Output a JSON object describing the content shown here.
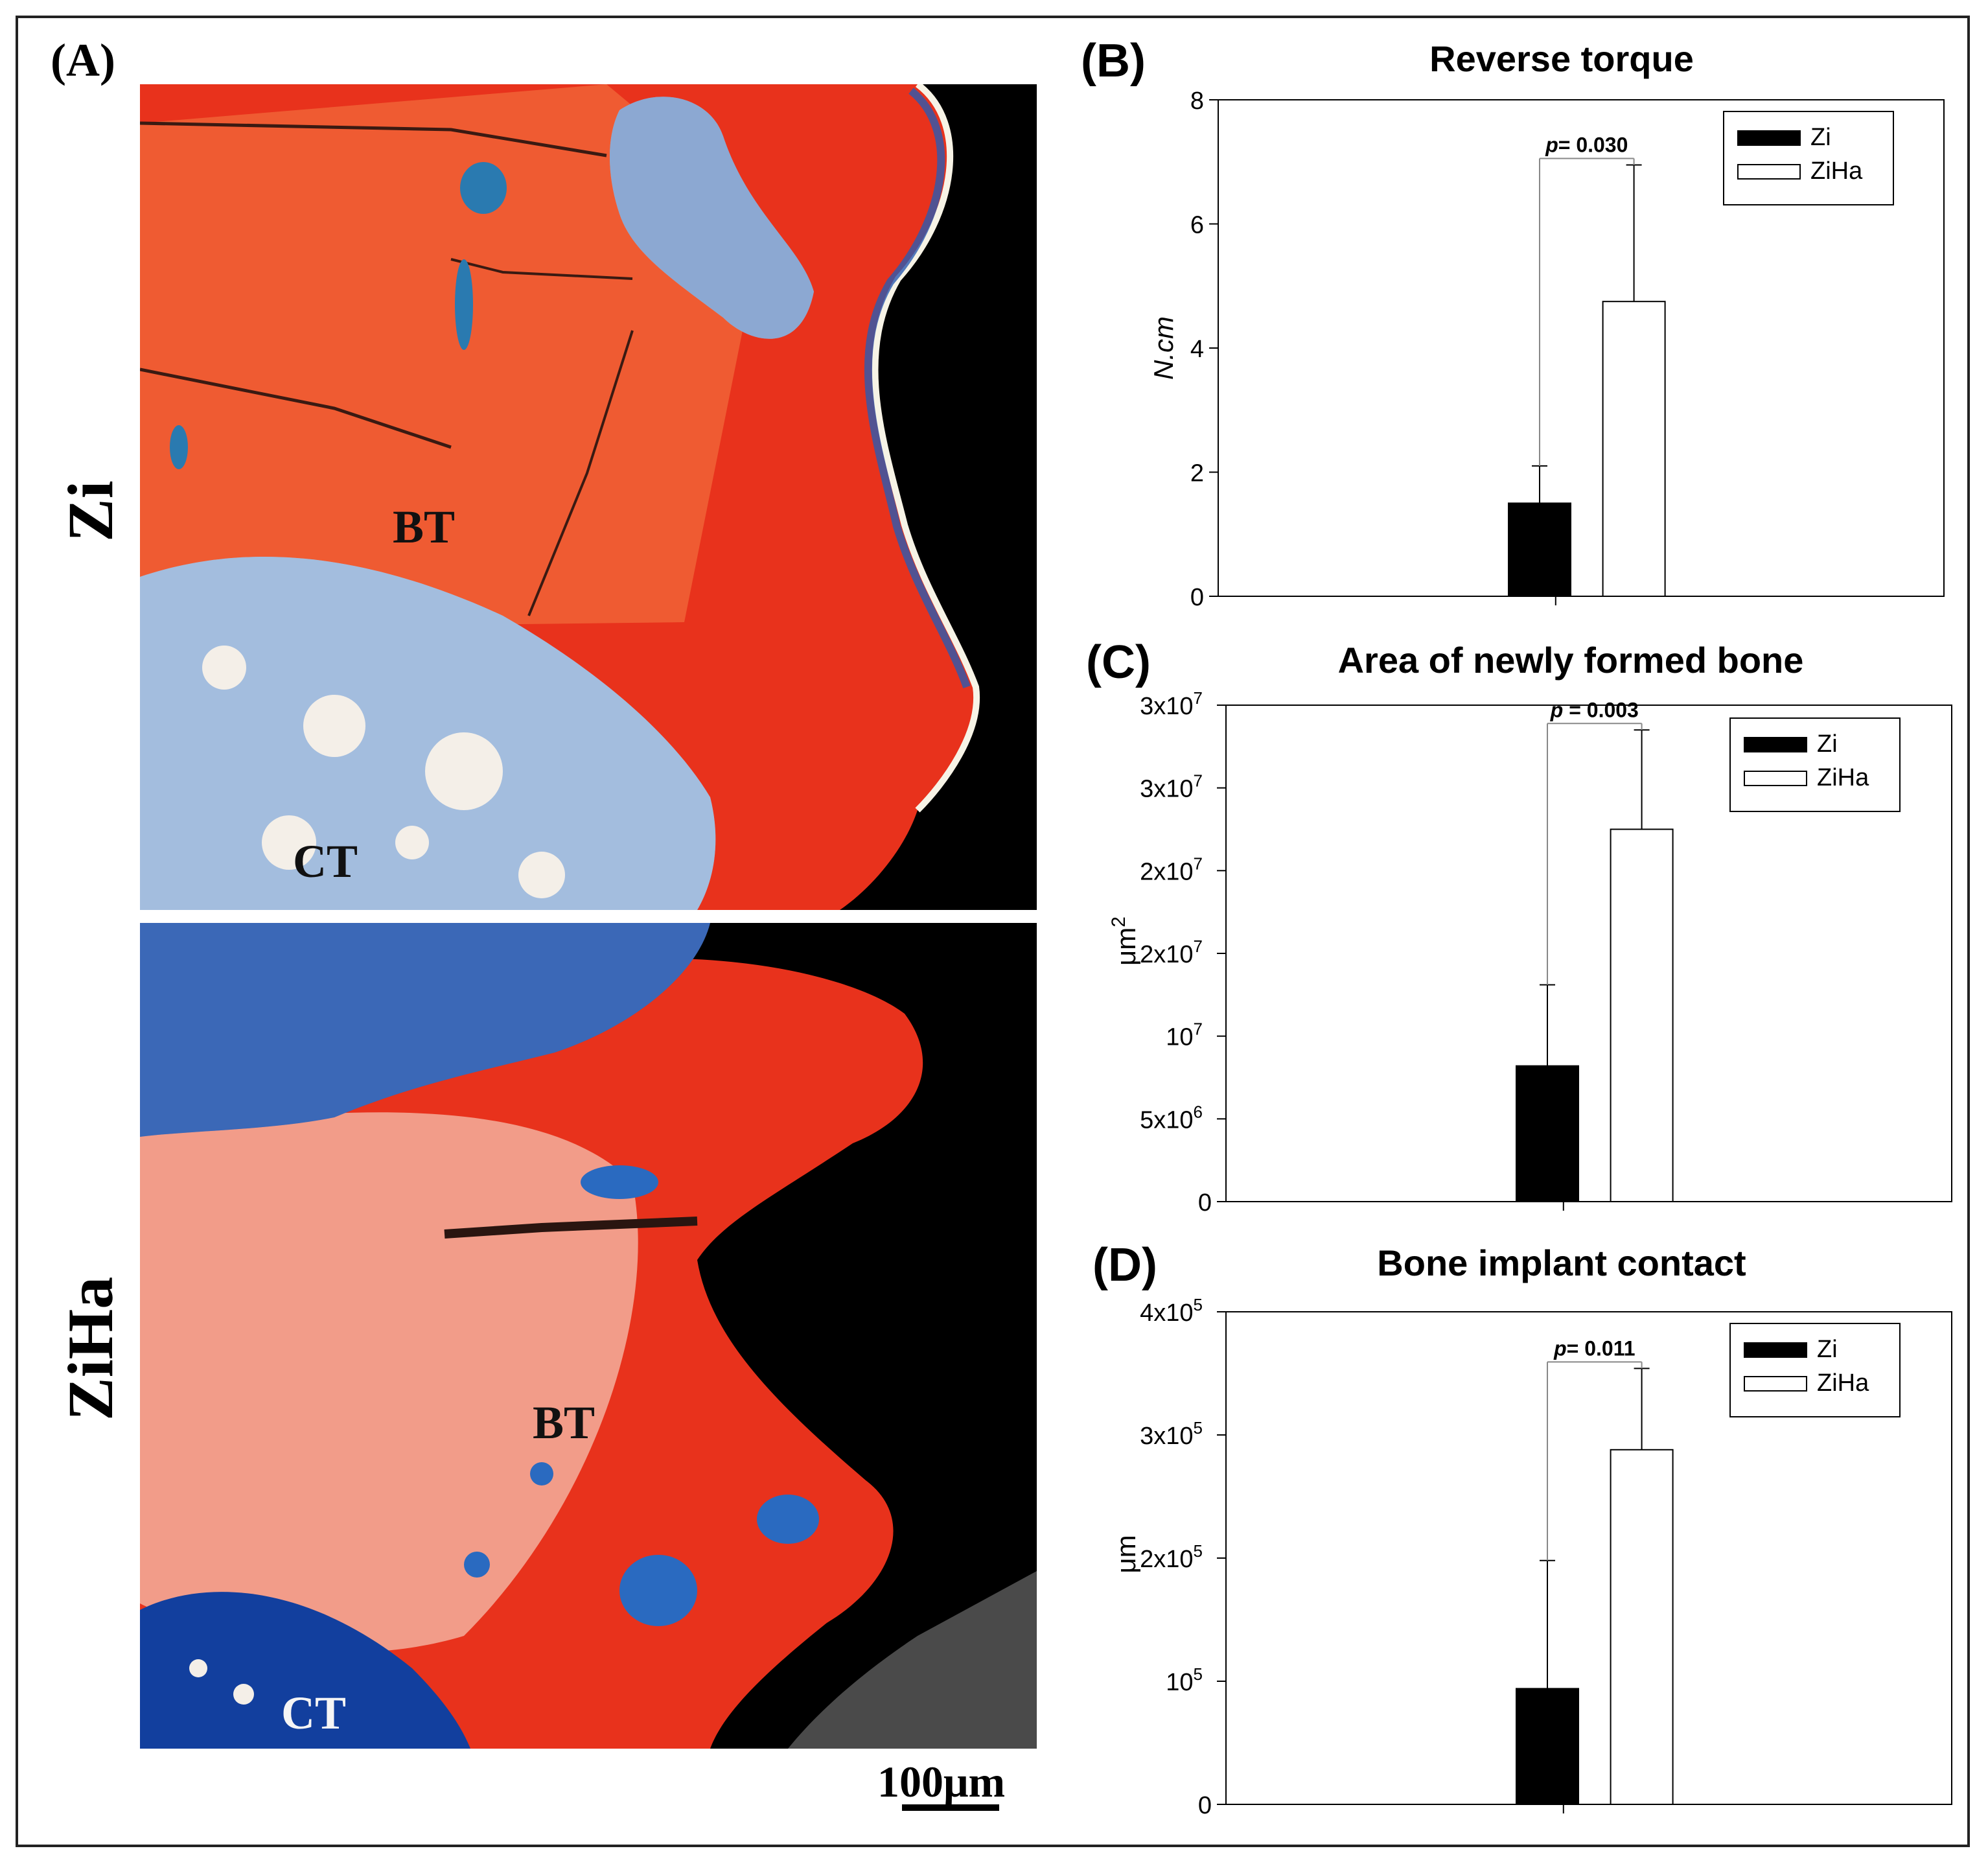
{
  "figure": {
    "panel_a": {
      "letter": "(A)",
      "rows": [
        {
          "label": "Zi",
          "tissue_labels": [
            "BT",
            "CT"
          ]
        },
        {
          "label": "ZiHa",
          "tissue_labels": [
            "BT",
            "CT"
          ]
        }
      ],
      "scale_bar": "100μm",
      "colors": {
        "bone": "#e8321c",
        "marrow": "#2a5ab0",
        "background": "#000000",
        "light": "#f4efe8"
      }
    }
  },
  "chart_data": [
    {
      "panel": "(B)",
      "type": "bar",
      "title": "Reverse torque",
      "ylabel": "N.cm",
      "ylim": [
        0,
        8
      ],
      "yticks": [
        {
          "value": 0,
          "label": "0"
        },
        {
          "value": 2,
          "label": "2"
        },
        {
          "value": 4,
          "label": "4"
        },
        {
          "value": 6,
          "label": "6"
        },
        {
          "value": 8,
          "label": "8"
        }
      ],
      "series": [
        {
          "name": "Zi",
          "value": 1.5,
          "error": 0.6,
          "fill": "#000000"
        },
        {
          "name": "ZiHa",
          "value": 4.75,
          "error": 2.2,
          "fill": "#ffffff"
        }
      ],
      "significance": {
        "p_label": "p",
        "p_value": "= 0.030"
      },
      "legend_position": "top-right"
    },
    {
      "panel": "(C)",
      "type": "bar",
      "title": "Area of newly formed bone",
      "ylabel": "μm",
      "ylabel_sup": "2",
      "ylim": [
        0,
        30000000
      ],
      "yticks": [
        {
          "value": 0,
          "label": "0",
          "sup": ""
        },
        {
          "value": 5000000,
          "label": "5x10",
          "sup": "6"
        },
        {
          "value": 10000000,
          "label": "10",
          "sup": "7"
        },
        {
          "value": 15000000,
          "label": "2x10",
          "sup": "7"
        },
        {
          "value": 20000000,
          "label": "2x10",
          "sup": "7"
        },
        {
          "value": 25000000,
          "label": "3x10",
          "sup": "7"
        },
        {
          "value": 30000000,
          "label": "3x10",
          "sup": "7"
        }
      ],
      "series": [
        {
          "name": "Zi",
          "value": 8200000,
          "error": 4900000,
          "fill": "#000000"
        },
        {
          "name": "ZiHa",
          "value": 22500000,
          "error": 6000000,
          "fill": "#ffffff"
        }
      ],
      "significance": {
        "p_label": "p",
        "p_value": " = 0.003"
      },
      "legend_position": "top-right"
    },
    {
      "panel": "(D)",
      "type": "bar",
      "title": "Bone implant contact",
      "ylabel": "μm",
      "ylim": [
        0,
        400000
      ],
      "yticks": [
        {
          "value": 0,
          "label": "0",
          "sup": ""
        },
        {
          "value": 100000,
          "label": "10",
          "sup": "5"
        },
        {
          "value": 200000,
          "label": "2x10",
          "sup": "5"
        },
        {
          "value": 300000,
          "label": "3x10",
          "sup": "5"
        },
        {
          "value": 400000,
          "label": "4x10",
          "sup": "5"
        }
      ],
      "series": [
        {
          "name": "Zi",
          "value": 94000,
          "error": 104000,
          "fill": "#000000"
        },
        {
          "name": "ZiHa",
          "value": 288000,
          "error": 66000,
          "fill": "#ffffff"
        }
      ],
      "significance": {
        "p_label": "p",
        "p_value": "= 0.011"
      },
      "legend_position": "top-right"
    }
  ]
}
